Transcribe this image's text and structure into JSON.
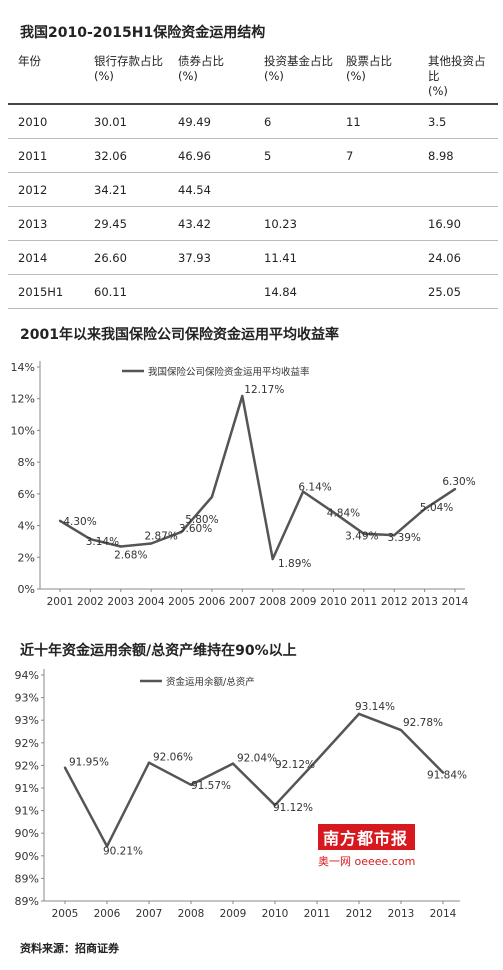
{
  "table_section": {
    "title": "我国2010-2015H1保险资金运用结构",
    "headers": [
      {
        "line1": "年份",
        "line2": ""
      },
      {
        "line1": "银行存款占比",
        "line2": "(%)"
      },
      {
        "line1": "债券占比",
        "line2": "(%)"
      },
      {
        "line1": "投资基金占比",
        "line2": "(%)"
      },
      {
        "line1": "股票占比",
        "line2": "(%)"
      },
      {
        "line1": "其他投资占比",
        "line2": "(%)"
      }
    ],
    "rows": [
      [
        "2010",
        "30.01",
        "49.49",
        "6",
        "11",
        "3.5"
      ],
      [
        "2011",
        "32.06",
        "46.96",
        "5",
        "7",
        "8.98"
      ],
      [
        "2012",
        "34.21",
        "44.54",
        "",
        "",
        ""
      ],
      [
        "2013",
        "29.45",
        "43.42",
        "10.23",
        "",
        "16.90"
      ],
      [
        "2014",
        "26.60",
        "37.93",
        "11.41",
        "",
        "24.06"
      ],
      [
        "2015H1",
        "60.11",
        "",
        "14.84",
        "",
        "25.05"
      ]
    ]
  },
  "chart1_title": "2001年以来我国保险公司保险资金运用平均收益率",
  "chart2_title": "近十年资金运用余额/总资产维持在90%以上",
  "source": "资料来源：招商证券",
  "logo": {
    "main": "南方都市报",
    "sub_cn": "奥一网",
    "sub_en": "oeeee.com"
  },
  "colors": {
    "line": "#555555",
    "axis": "#888888",
    "logo": "#d7191f"
  },
  "chart_data": [
    {
      "type": "line",
      "title": "2001年以来我国保险公司保险资金运用平均收益率",
      "x": [
        2001,
        2002,
        2003,
        2004,
        2005,
        2006,
        2007,
        2008,
        2009,
        2010,
        2011,
        2012,
        2013,
        2014
      ],
      "series": [
        {
          "name": "我国保险公司保险资金运用平均收益率",
          "values": [
            4.3,
            3.14,
            2.68,
            2.87,
            3.6,
            5.8,
            12.17,
            1.89,
            6.14,
            4.84,
            3.49,
            3.39,
            5.04,
            6.3
          ]
        }
      ],
      "data_labels": [
        "4.30%",
        "3.14%",
        "2.68%",
        "2.87%",
        "3.60%",
        "5.80%",
        "12.17%",
        "1.89%",
        "6.14%",
        "4.84%",
        "3.49%",
        "3.39%",
        "5.04%",
        "6.30%"
      ],
      "y_ticks": [
        "0%",
        "2%",
        "4%",
        "6%",
        "8%",
        "10%",
        "12%",
        "14%"
      ],
      "ylim": [
        0,
        14
      ],
      "grid": false,
      "legend": "top-left"
    },
    {
      "type": "line",
      "title": "近十年资金运用余额/总资产维持在90%以上",
      "x": [
        2005,
        2006,
        2007,
        2008,
        2009,
        2010,
        2011,
        2012,
        2013,
        2014
      ],
      "series": [
        {
          "name": "资金运用余额/总资产",
          "values": [
            91.95,
            90.21,
            92.06,
            91.57,
            92.04,
            91.12,
            92.12,
            93.14,
            92.78,
            91.84
          ]
        }
      ],
      "data_labels": [
        "91.95%",
        "90.21%",
        "92.06%",
        "91.57%",
        "92.04%",
        "91.12%",
        "92.12%",
        "93.14%",
        "92.78%",
        "91.84%"
      ],
      "y_ticks": [
        "89%",
        "89%",
        "90%",
        "90%",
        "91%",
        "91%",
        "92%",
        "92%",
        "93%",
        "93%",
        "94%"
      ],
      "ylim": [
        89,
        94
      ],
      "grid": false,
      "legend": "top-left"
    }
  ]
}
